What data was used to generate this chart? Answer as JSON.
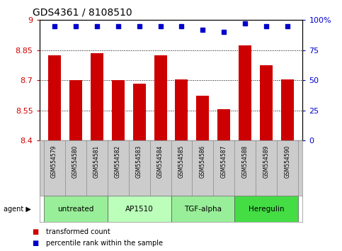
{
  "title": "GDS4361 / 8108510",
  "samples": [
    "GSM554579",
    "GSM554580",
    "GSM554581",
    "GSM554582",
    "GSM554583",
    "GSM554584",
    "GSM554585",
    "GSM554586",
    "GSM554587",
    "GSM554588",
    "GSM554589",
    "GSM554590"
  ],
  "bar_values": [
    8.825,
    8.7,
    8.835,
    8.7,
    8.685,
    8.825,
    8.705,
    8.625,
    8.555,
    8.875,
    8.775,
    8.705
  ],
  "percentile_values": [
    95,
    95,
    95,
    95,
    95,
    95,
    95,
    92,
    90,
    97,
    95,
    95
  ],
  "ylim_left": [
    8.4,
    9.0
  ],
  "ylim_right": [
    0,
    100
  ],
  "yticks_left": [
    8.4,
    8.55,
    8.7,
    8.85,
    9.0
  ],
  "ytick_labels_left": [
    "8.4",
    "8.55",
    "8.7",
    "8.85",
    "9"
  ],
  "yticks_right": [
    0,
    25,
    50,
    75,
    100
  ],
  "ytick_labels_right": [
    "0",
    "25",
    "50",
    "75",
    "100%"
  ],
  "hlines": [
    8.55,
    8.7,
    8.85
  ],
  "bar_color": "#cc0000",
  "dot_color": "#0000cc",
  "agent_groups": [
    {
      "label": "untreated",
      "start": 0,
      "end": 3,
      "color": "#99ee99"
    },
    {
      "label": "AP1510",
      "start": 3,
      "end": 6,
      "color": "#bbffbb"
    },
    {
      "label": "TGF-alpha",
      "start": 6,
      "end": 9,
      "color": "#99ee99"
    },
    {
      "label": "Heregulin",
      "start": 9,
      "end": 12,
      "color": "#44dd44"
    }
  ],
  "sample_bg_color": "#cccccc",
  "background_color": "#ffffff",
  "plot_bg_color": "#ffffff",
  "tick_label_color_left": "#cc0000",
  "tick_label_color_right": "#0000cc",
  "legend_items": [
    {
      "label": "transformed count",
      "color": "#cc0000"
    },
    {
      "label": "percentile rank within the sample",
      "color": "#0000cc"
    }
  ]
}
